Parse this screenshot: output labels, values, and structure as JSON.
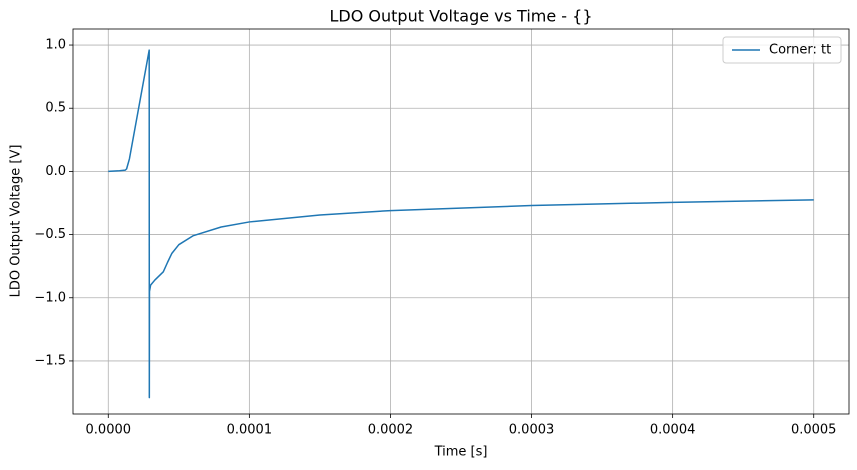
{
  "chart_data": {
    "type": "line",
    "title": "LDO Output Voltage vs Time - {}",
    "xlabel": "Time [s]",
    "ylabel": "LDO Output Voltage [V]",
    "x": [
      0,
      8e-06,
      1.2e-05,
      1.3e-05,
      1.5e-05,
      2.9e-05,
      2.91e-05,
      2.92e-05,
      3e-05,
      3.3e-05,
      3.9e-05,
      4.2e-05,
      4.5e-05,
      5e-05,
      6e-05,
      8e-05,
      0.0001,
      0.00015,
      0.0002,
      0.0003,
      0.0004,
      0.0005
    ],
    "series": [
      {
        "name": "Corner: tt",
        "color": "#1f77b4",
        "values": [
          0,
          0.005,
          0.01,
          0.02,
          0.1,
          0.96,
          -1.79,
          -0.95,
          -0.9,
          -0.86,
          -0.795,
          -0.72,
          -0.65,
          -0.58,
          -0.51,
          -0.44,
          -0.4,
          -0.345,
          -0.31,
          -0.27,
          -0.245,
          -0.225
        ]
      }
    ],
    "xlim": [
      -2.5e-05,
      0.000525
    ],
    "xticks": [
      {
        "value": 0,
        "label": "0.0000"
      },
      {
        "value": 0.0001,
        "label": "0.0001"
      },
      {
        "value": 0.0002,
        "label": "0.0002"
      },
      {
        "value": 0.0003,
        "label": "0.0003"
      },
      {
        "value": 0.0004,
        "label": "0.0004"
      },
      {
        "value": 0.0005,
        "label": "0.0005"
      }
    ],
    "ylim": [
      -1.92,
      1.127
    ],
    "yticks": [
      {
        "value": -1.5,
        "label": "−1.5"
      },
      {
        "value": -1,
        "label": "−1.0"
      },
      {
        "value": -0.5,
        "label": "−0.5"
      },
      {
        "value": 0,
        "label": "0.0"
      },
      0.5,
      {
        "value": 1,
        "label": "1.0"
      }
    ],
    "grid": true,
    "legend": "upper right"
  }
}
